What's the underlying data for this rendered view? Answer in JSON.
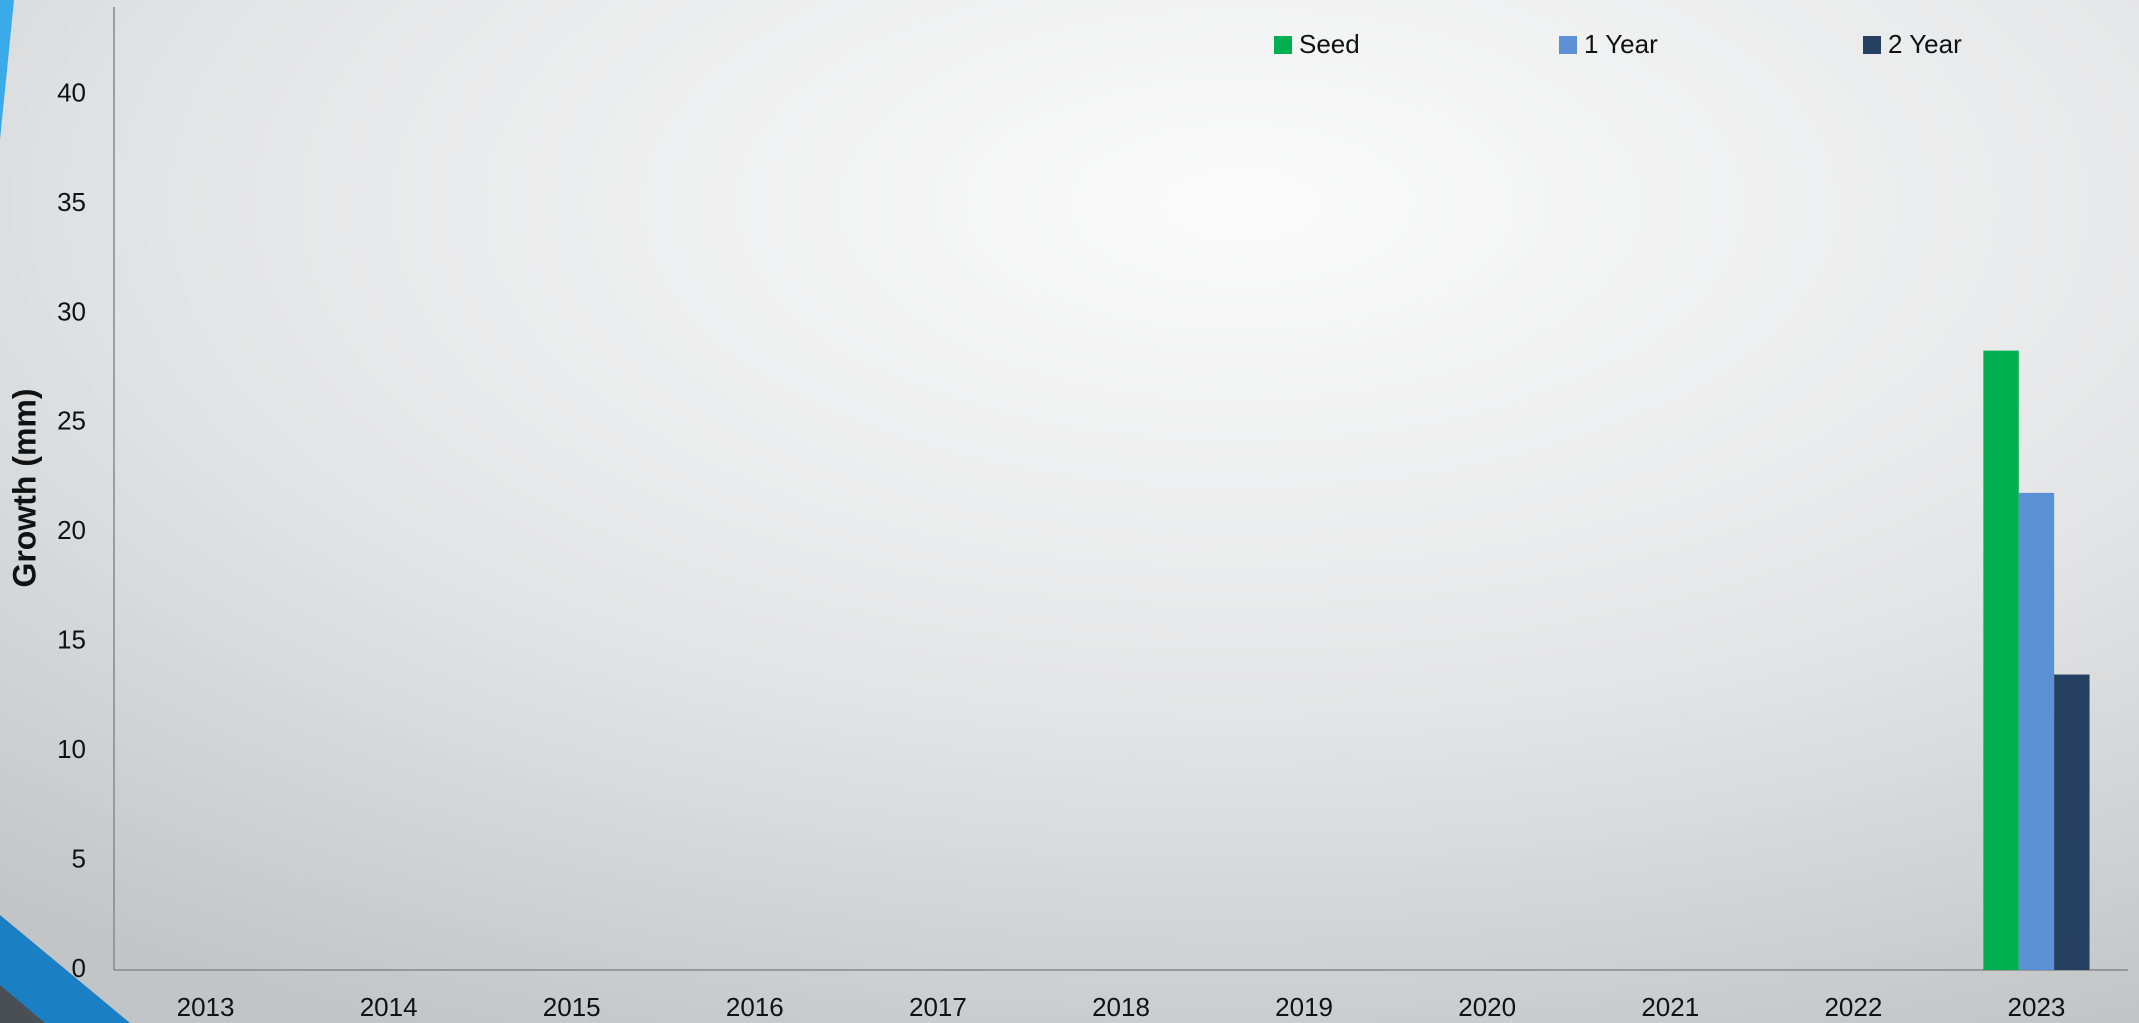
{
  "chart_data": {
    "type": "bar",
    "y_label": "Growth (mm)",
    "categories": [
      "2013",
      "2014",
      "2015",
      "2016",
      "2017",
      "2018",
      "2019",
      "2020",
      "2021",
      "2022",
      "2023"
    ],
    "series": [
      {
        "name": "Seed",
        "color": "#00b050",
        "values": [
          null,
          null,
          null,
          null,
          null,
          null,
          null,
          null,
          null,
          null,
          28.3
        ]
      },
      {
        "name": "1 Year",
        "color": "#5b8fd6",
        "values": [
          null,
          null,
          null,
          null,
          null,
          null,
          null,
          null,
          null,
          null,
          21.8
        ]
      },
      {
        "name": "2 Year",
        "color": "#243f60",
        "values": [
          null,
          null,
          null,
          null,
          null,
          null,
          null,
          null,
          null,
          null,
          13.5
        ]
      }
    ],
    "ylim": [
      0,
      44
    ],
    "yticks": [
      0,
      5,
      10,
      15,
      20,
      25,
      30,
      35,
      40
    ],
    "grid": false,
    "legend": "top"
  }
}
